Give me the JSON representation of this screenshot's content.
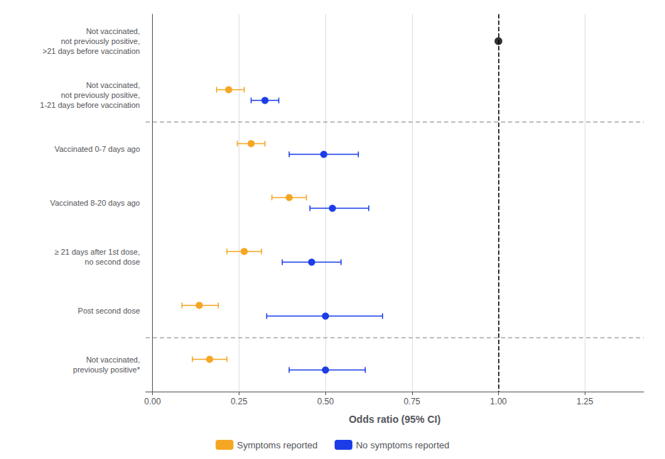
{
  "chart_data": {
    "type": "forest",
    "xlabel": "Odds ratio (95% CI)",
    "categories": [
      "Not vaccinated,\nnot previously positive,\n>21 days before vaccination",
      "Not vaccinated,\nnot previously positive,\n1-21 days before vaccination",
      "Vaccinated 0-7 days ago",
      "Vaccinated 8-20 days ago",
      "≥ 21 days after 1st dose,\nno second dose",
      "Post second dose",
      "Not vaccinated,\npreviously positive*"
    ],
    "series": [
      {
        "name": "Symptoms reported",
        "color": "#F5A623",
        "values": [
          null,
          0.22,
          0.285,
          0.395,
          0.265,
          0.135,
          0.165
        ],
        "lo": [
          null,
          0.185,
          0.245,
          0.345,
          0.215,
          0.085,
          0.115
        ],
        "hi": [
          null,
          0.265,
          0.325,
          0.445,
          0.315,
          0.19,
          0.215
        ]
      },
      {
        "name": "No symptoms reported",
        "color": "#1B3DE8",
        "values": [
          null,
          0.325,
          0.495,
          0.52,
          0.46,
          0.5,
          0.5
        ],
        "lo": [
          null,
          0.285,
          0.395,
          0.455,
          0.375,
          0.33,
          0.395
        ],
        "hi": [
          null,
          0.365,
          0.595,
          0.625,
          0.545,
          0.665,
          0.615
        ]
      }
    ],
    "reference_points": {
      "color": "#000000",
      "values": [
        1.0,
        null,
        null,
        null,
        null,
        null,
        null
      ]
    },
    "reference_line_x": 1.0,
    "group_separators": [
      "Not vaccinated,\nnot previously positive,\n1-21 days before vaccination",
      "Post second dose"
    ],
    "xlim": [
      -0.02,
      1.42
    ],
    "xticks": [
      {
        "value": 0.0,
        "label": "0.00"
      },
      {
        "value": 0.25,
        "label": "0.25"
      },
      {
        "value": 0.5,
        "label": "0.50"
      },
      {
        "value": 0.75,
        "label": "0.75"
      },
      {
        "value": 1.0,
        "label": "1.00"
      },
      {
        "value": 1.25,
        "label": "1.25"
      }
    ],
    "grid": true,
    "legend": "bottom"
  }
}
